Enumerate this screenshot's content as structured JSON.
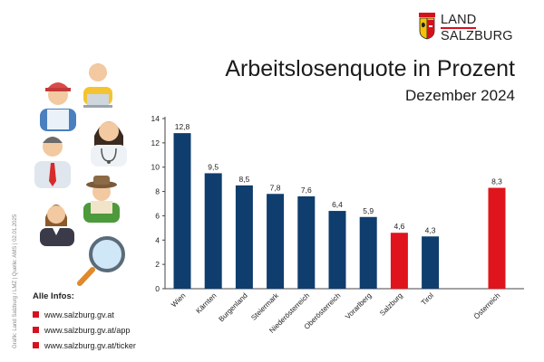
{
  "logo": {
    "line1": "LAND",
    "line2": "SALZBURG"
  },
  "header": {
    "title": "Arbeitslosenquote in Prozent",
    "subtitle": "Dezember 2024"
  },
  "credit": "Grafik: Land Salzburg / LMZ | Quelle: AMS | 02.01.2025",
  "infos": {
    "title": "Alle Infos:",
    "links": [
      "www.salzburg.gv.at",
      "www.salzburg.gv.at/app",
      "www.salzburg.gv.at/ticker"
    ]
  },
  "colors": {
    "bar": "#0f3d6e",
    "highlight": "#e0141c",
    "accent": "#d6111e"
  },
  "chart_data": {
    "type": "bar",
    "title": "Arbeitslosenquote in Prozent",
    "subtitle": "Dezember 2024",
    "categories": [
      "Wien",
      "Kärnten",
      "Burgenland",
      "Steiermark",
      "Niederösterreich",
      "Oberösterreich",
      "Vorarlberg",
      "Salzburg",
      "Tirol",
      "Österreich"
    ],
    "values": [
      12.8,
      9.5,
      8.5,
      7.8,
      7.6,
      6.4,
      5.9,
      4.6,
      4.3,
      8.3
    ],
    "value_labels": [
      "12,8",
      "9,5",
      "8,5",
      "7,8",
      "7,6",
      "6,4",
      "5,9",
      "4,6",
      "4,3",
      "8,3"
    ],
    "highlighted": [
      "Salzburg",
      "Österreich"
    ],
    "ylim": [
      0,
      14
    ],
    "yticks": [
      0,
      2,
      4,
      6,
      8,
      10,
      12,
      14
    ],
    "grid": false,
    "legend": "none"
  }
}
